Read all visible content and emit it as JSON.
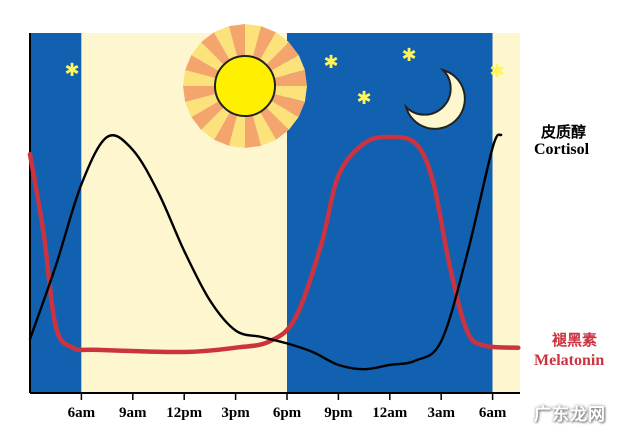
{
  "chart_data": {
    "type": "line",
    "x_ticks": [
      "6am",
      "9am",
      "12pm",
      "3pm",
      "6pm",
      "9pm",
      "12am",
      "3am",
      "6am"
    ],
    "series": [
      {
        "name_cn": "皮质醇",
        "name": "Cortisol",
        "color": "#000000",
        "points": [
          [
            3,
            0.06
          ],
          [
            4.5,
            0.4
          ],
          [
            6,
            0.78
          ],
          [
            7.5,
            1.0
          ],
          [
            9,
            0.94
          ],
          [
            10.5,
            0.74
          ],
          [
            12,
            0.47
          ],
          [
            13.5,
            0.24
          ],
          [
            15,
            0.1
          ],
          [
            16.5,
            0.07
          ],
          [
            18,
            0.04
          ],
          [
            19.5,
            0.0
          ],
          [
            21,
            -0.06
          ],
          [
            22.5,
            -0.08
          ],
          [
            24,
            -0.06
          ],
          [
            25.5,
            -0.04
          ],
          [
            27,
            0.05
          ],
          [
            28.5,
            0.45
          ],
          [
            30,
            0.95
          ],
          [
            30.5,
            1.01
          ]
        ]
      },
      {
        "name_cn": "褪黑素",
        "name": "Melatonin",
        "color": "#cc3340",
        "points": [
          [
            3,
            0.92
          ],
          [
            3.8,
            0.55
          ],
          [
            4.5,
            0.12
          ],
          [
            5.5,
            0.02
          ],
          [
            7,
            0.01
          ],
          [
            12,
            0.0
          ],
          [
            15,
            0.02
          ],
          [
            17,
            0.05
          ],
          [
            18.5,
            0.16
          ],
          [
            20,
            0.5
          ],
          [
            21,
            0.82
          ],
          [
            22.5,
            0.97
          ],
          [
            24,
            1.0
          ],
          [
            25.5,
            0.97
          ],
          [
            26.5,
            0.8
          ],
          [
            27.5,
            0.4
          ],
          [
            28.5,
            0.1
          ],
          [
            29.5,
            0.03
          ],
          [
            31.5,
            0.02
          ]
        ]
      }
    ],
    "background_bands": [
      {
        "from": "3am",
        "to": "6am",
        "phase": "night",
        "color": "#1261b0"
      },
      {
        "from": "6am",
        "to": "6pm",
        "phase": "day",
        "color": "#fdf6cf"
      },
      {
        "from": "6pm",
        "to": "6am",
        "phase": "night",
        "color": "#1261b0"
      },
      {
        "from": "6am",
        "to": "9am",
        "phase": "day",
        "color": "#fdf6cf"
      }
    ],
    "icons": [
      "sun-icon",
      "crescent-moon-icon",
      "star-icon"
    ],
    "grid": false,
    "legend": "right"
  },
  "watermark": "广东龙网"
}
